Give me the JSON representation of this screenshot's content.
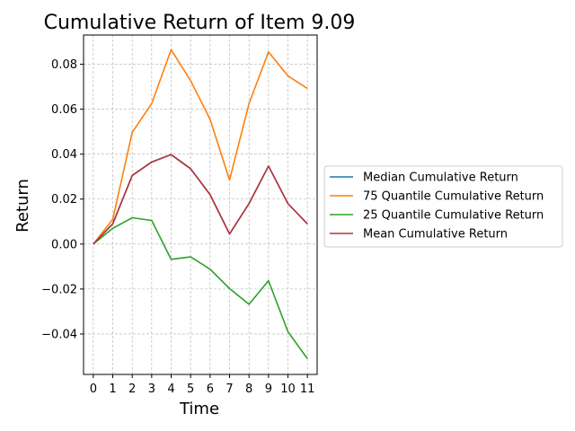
{
  "chart_data": {
    "type": "line",
    "title": "Cumulative Return of Item 9.09",
    "xlabel": "Time",
    "ylabel": "Return",
    "x": [
      0,
      1,
      2,
      3,
      4,
      5,
      6,
      7,
      8,
      9,
      10,
      11
    ],
    "xlim": [
      -0.5,
      11.5
    ],
    "ylim": [
      -0.058,
      0.093
    ],
    "yticks": [
      -0.04,
      -0.02,
      0.0,
      0.02,
      0.04,
      0.06,
      0.08
    ],
    "ytick_labels": [
      "−0.04",
      "−0.02",
      "0.00",
      "0.02",
      "0.04",
      "0.06",
      "0.08"
    ],
    "xtick_labels": [
      "0",
      "1",
      "2",
      "3",
      "4",
      "5",
      "6",
      "7",
      "8",
      "9",
      "10",
      "11"
    ],
    "grid": true,
    "legend_position": "right, outside plot area",
    "series": [
      {
        "name": "Median Cumulative Return",
        "color": "#1f77b4",
        "values": [
          0.0,
          0.009,
          0.0305,
          0.0365,
          0.0398,
          0.0335,
          0.022,
          0.0045,
          0.018,
          0.0347,
          0.018,
          0.009
        ]
      },
      {
        "name": "75 Quantile Cumulative Return",
        "color": "#ff7f0e",
        "values": [
          0.0,
          0.011,
          0.0497,
          0.0625,
          0.0865,
          0.0727,
          0.0555,
          0.0285,
          0.0625,
          0.0855,
          0.0748,
          0.0692
        ]
      },
      {
        "name": "25 Quantile Cumulative Return",
        "color": "#2ca02c",
        "values": [
          0.0,
          0.007,
          0.0117,
          0.0105,
          -0.0068,
          -0.0057,
          -0.0112,
          -0.0198,
          -0.0268,
          -0.0163,
          -0.039,
          -0.051
        ]
      },
      {
        "name": "Mean Cumulative Return",
        "color": "#b5323a",
        "values": [
          0.0,
          0.009,
          0.0305,
          0.0365,
          0.0398,
          0.0335,
          0.022,
          0.0045,
          0.018,
          0.0347,
          0.018,
          0.009
        ]
      }
    ]
  }
}
